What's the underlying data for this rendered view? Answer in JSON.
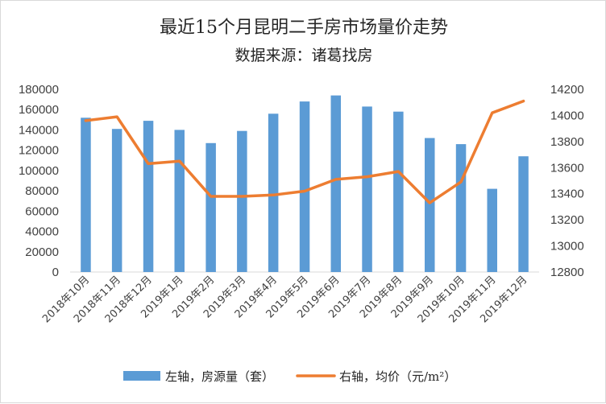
{
  "chart_data": {
    "type": "bar",
    "title": "最近15个月昆明二手房市场量价走势",
    "subtitle": "数据来源：诸葛找房",
    "categories": [
      "2018年10月",
      "2018年11月",
      "2018年12月",
      "2019年1月",
      "2019年2月",
      "2019年3月",
      "2019年4月",
      "2019年5月",
      "2019年6月",
      "2019年7月",
      "2019年8月",
      "2019年9月",
      "2019年10月",
      "2019年11月",
      "2019年12月"
    ],
    "series": [
      {
        "name": "左轴，房源量（套）",
        "type": "bar",
        "axis": "left",
        "color": "#5b9bd5",
        "values": [
          152000,
          141000,
          149000,
          140000,
          127000,
          139000,
          156000,
          168000,
          174000,
          163000,
          158000,
          132000,
          126000,
          82000,
          114000
        ]
      },
      {
        "name": "右轴，均价（元/m²）",
        "type": "line",
        "axis": "right",
        "color": "#ed7d31",
        "values": [
          13960,
          13990,
          13630,
          13650,
          13380,
          13380,
          13390,
          13420,
          13510,
          13530,
          13570,
          13330,
          13490,
          14020,
          14110
        ]
      }
    ],
    "y_left": {
      "min": 0,
      "max": 180000,
      "step": 20000,
      "ticks": [
        "0",
        "20000",
        "40000",
        "60000",
        "80000",
        "100000",
        "120000",
        "140000",
        "160000",
        "180000"
      ]
    },
    "y_right": {
      "min": 12800,
      "max": 14200,
      "step": 200,
      "ticks": [
        "12800",
        "13000",
        "13200",
        "13400",
        "13600",
        "13800",
        "14000",
        "14200"
      ]
    },
    "grid": false,
    "legend_position": "bottom"
  }
}
